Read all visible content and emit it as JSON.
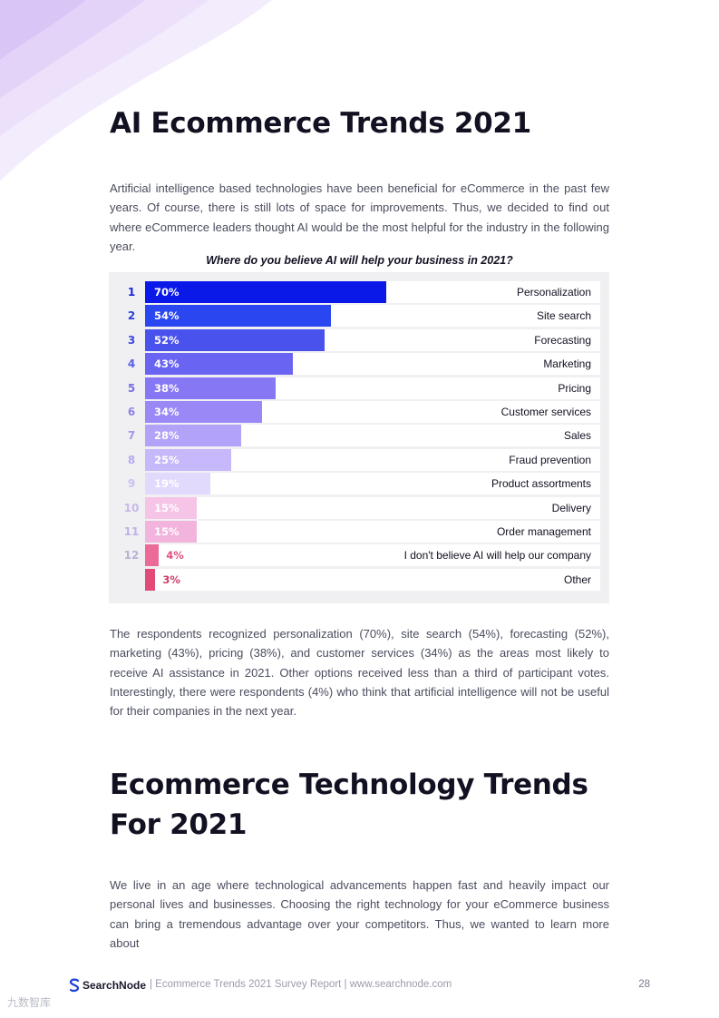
{
  "section1": {
    "title": "AI Ecommerce Trends 2021",
    "intro": "Artificial intelligence based technologies have been beneficial for eCommerce in the past few years. Of course, there is still lots of space for improvements. Thus, we decided to find out where eCommerce leaders thought AI would be the most helpful for the industry in the following year.",
    "summary": "The respondents recognized personalization (70%), site search (54%), forecasting (52%), marketing (43%), pricing (38%), and customer services (34%) as the areas most likely to receive AI assistance in 2021. Other options received less than a third of participant votes. Interestingly, there were respondents (4%) who think that artificial intelligence will not be useful for their companies in the next year."
  },
  "chart_data": {
    "type": "bar",
    "orientation": "horizontal",
    "title": "Where do you believe AI will help your business in 2021?",
    "xlim": [
      0,
      100
    ],
    "unit": "%",
    "rows": [
      {
        "rank": "1",
        "label": "Personalization",
        "value": 70,
        "value_label": "70%",
        "color": "#0a18e8",
        "rank_color": "#1a24d8",
        "text_color": "#ffffff"
      },
      {
        "rank": "2",
        "label": "Site search",
        "value": 54,
        "value_label": "54%",
        "color": "#2a46f0",
        "rank_color": "#2a3ee0",
        "text_color": "#ffffff"
      },
      {
        "rank": "3",
        "label": "Forecasting",
        "value": 52,
        "value_label": "52%",
        "color": "#4a52ee",
        "rank_color": "#3f4ae0",
        "text_color": "#ffffff"
      },
      {
        "rank": "4",
        "label": "Marketing",
        "value": 43,
        "value_label": "43%",
        "color": "#6a64f2",
        "rank_color": "#5a5ee4",
        "text_color": "#ffffff"
      },
      {
        "rank": "5",
        "label": "Pricing",
        "value": 38,
        "value_label": "38%",
        "color": "#8677f4",
        "rank_color": "#7a70e6",
        "text_color": "#ffffff"
      },
      {
        "rank": "6",
        "label": "Customer services",
        "value": 34,
        "value_label": "34%",
        "color": "#9a88f6",
        "rank_color": "#8e82e8",
        "text_color": "#ffffff"
      },
      {
        "rank": "7",
        "label": "Sales",
        "value": 28,
        "value_label": "28%",
        "color": "#b2a2f8",
        "rank_color": "#a296ec",
        "text_color": "#ffffff"
      },
      {
        "rank": "8",
        "label": "Fraud prevention",
        "value": 25,
        "value_label": "25%",
        "color": "#c6b8fa",
        "rank_color": "#b6aaf0",
        "text_color": "#ffffff"
      },
      {
        "rank": "9",
        "label": "Product assortments",
        "value": 19,
        "value_label": "19%",
        "color": "#e2dafc",
        "rank_color": "#cac0f2",
        "text_color": "#ffffff"
      },
      {
        "rank": "10",
        "label": "Delivery",
        "value": 15,
        "value_label": "15%",
        "color": "#f6c4e6",
        "rank_color": "#c9b8ea",
        "text_color": "#ffffff"
      },
      {
        "rank": "11",
        "label": "Order management",
        "value": 15,
        "value_label": "15%",
        "color": "#f2b4dc",
        "rank_color": "#c0b2e6",
        "text_color": "#ffffff"
      },
      {
        "rank": "12",
        "label": "I don't believe AI will help our company",
        "value": 4,
        "value_label": "4%",
        "color": "#ea6a98",
        "rank_color": "#b8b2d4",
        "text_color": "#e0507e"
      },
      {
        "rank": "",
        "label": "Other",
        "value": 3,
        "value_label": "3%",
        "color": "#e24a78",
        "rank_color": "#b8b2d4",
        "text_color": "#d03a68"
      }
    ]
  },
  "section2": {
    "title": "Ecommerce Technology Trends For 2021",
    "intro": "We live in an age where technological advancements happen fast and heavily impact our personal lives and businesses. Choosing the right technology for your eCommerce business can bring a tremendous advantage over your competitors. Thus, we wanted to learn more about"
  },
  "footer": {
    "brand": "SearchNode",
    "report": "|   Ecommerce Trends 2021 Survey Report   |   www.searchnode.com",
    "page_number": "28"
  },
  "watermark": "九数智库"
}
